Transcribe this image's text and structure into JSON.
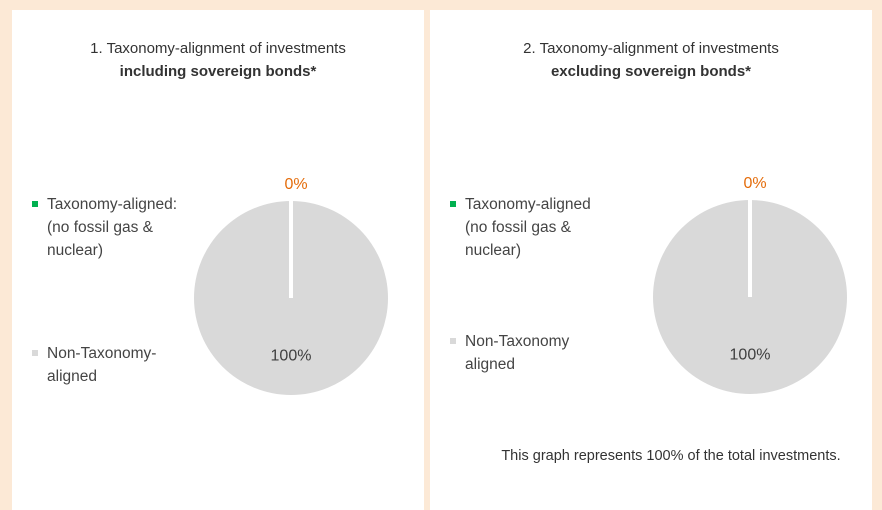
{
  "chart_data": [
    {
      "type": "pie",
      "title": "1. Taxonomy-alignment of investments",
      "subtitle": "including sovereign bonds*",
      "categories": [
        "Taxonomy-aligned: (no fossil gas & nuclear)",
        "Non-Taxonomy-aligned"
      ],
      "values": [
        0,
        100
      ],
      "value_labels": [
        "0%",
        "100%"
      ],
      "colors": [
        "#00b050",
        "#d9d9d9"
      ],
      "label_colors": [
        "#e46c0a",
        "#404040"
      ]
    },
    {
      "type": "pie",
      "title": "2. Taxonomy-alignment of investments",
      "subtitle": "excluding sovereign bonds*",
      "categories": [
        "Taxonomy-aligned (no fossil gas & nuclear)",
        "Non-Taxonomy aligned"
      ],
      "values": [
        0,
        100
      ],
      "value_labels": [
        "0%",
        "100%"
      ],
      "colors": [
        "#00b050",
        "#d9d9d9"
      ],
      "label_colors": [
        "#e46c0a",
        "#404040"
      ],
      "note": "This graph represents 100% of the total investments."
    }
  ]
}
